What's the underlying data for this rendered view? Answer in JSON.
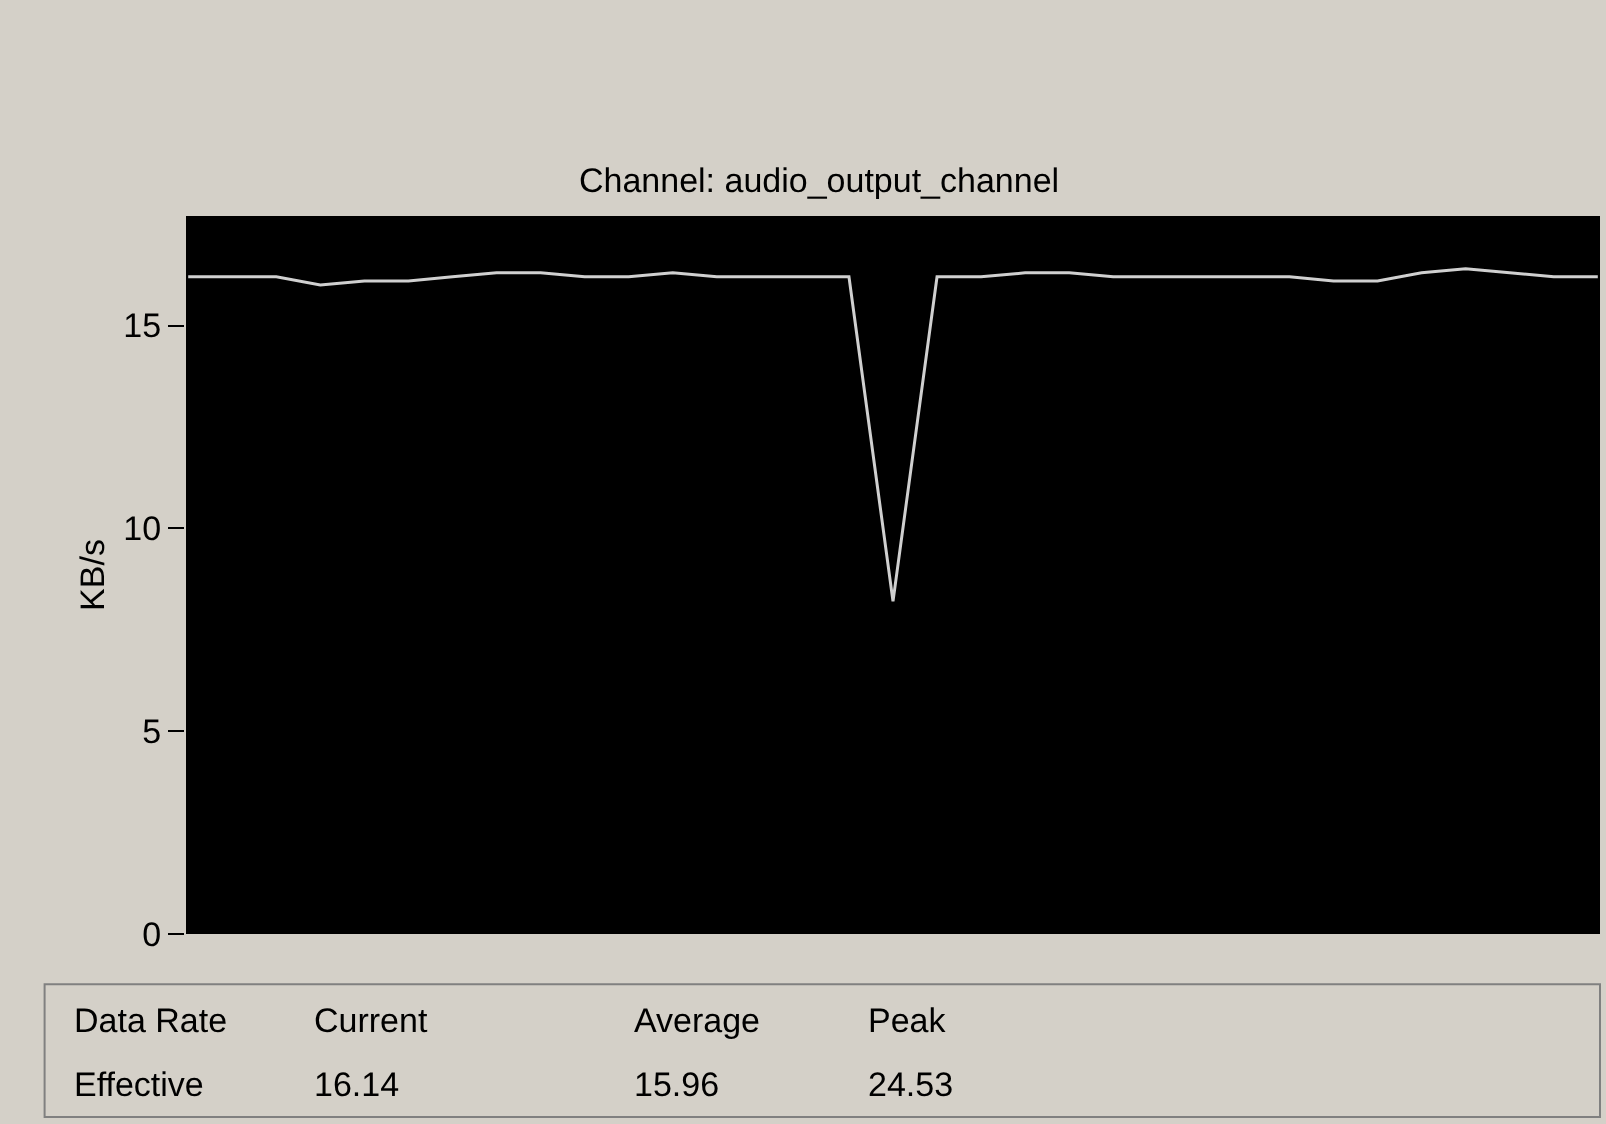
{
  "chart_data": {
    "type": "line",
    "title": "Channel: audio_output_channel",
    "ylabel": "KB/s",
    "categories": [
      null,
      null,
      null,
      null,
      null,
      null,
      null,
      null,
      null,
      null,
      null,
      null,
      null,
      null,
      null,
      null,
      null,
      null,
      null,
      null,
      null,
      null,
      null,
      null,
      null,
      null,
      null,
      null,
      null,
      null,
      null,
      null,
      null
    ],
    "series": [
      {
        "color": "#d0d0d0",
        "values": [
          16.2,
          16.2,
          16.2,
          16.0,
          16.1,
          16.1,
          16.2,
          16.3,
          16.3,
          16.2,
          16.2,
          16.3,
          16.2,
          16.2,
          16.2,
          16.2,
          8.2,
          16.2,
          16.2,
          16.3,
          16.3,
          16.2,
          16.2,
          16.2,
          16.2,
          16.2,
          16.1,
          16.1,
          16.3,
          16.4,
          16.3,
          16.2,
          16.2
        ]
      }
    ],
    "ylim": [
      0,
      17.7
    ],
    "yticks": [
      0,
      5,
      10,
      15
    ],
    "tick_labels": "y",
    "grid": false,
    "marker": "none",
    "line_style": "solid",
    "annotations": [
      "Data Rate",
      "Current",
      "Average",
      "Peak",
      "Effective",
      "16.14",
      "15.96",
      "24.53"
    ]
  }
}
